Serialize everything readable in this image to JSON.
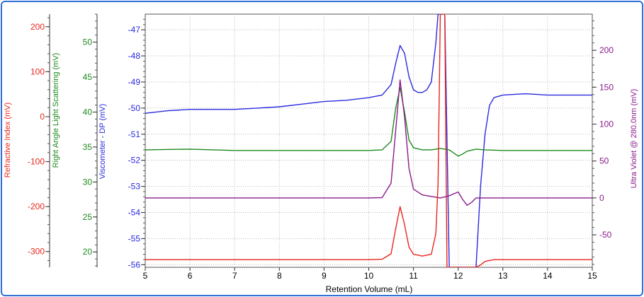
{
  "chart_data": {
    "type": "line",
    "xlabel": "Retention Volume (mL)",
    "xlim": [
      5,
      15
    ],
    "x_ticks": [
      "5",
      "6",
      "7",
      "8",
      "9",
      "10",
      "11",
      "12",
      "13",
      "14",
      "15"
    ],
    "grid": true,
    "axes": {
      "ri": {
        "label": "Refractive Index (mV)",
        "color": "#e8261c",
        "ylim": [
          -335,
          228
        ],
        "ticks": [
          "200",
          "100",
          "0",
          "-100",
          "-200",
          "-300"
        ],
        "tick_values": [
          200,
          100,
          0,
          -100,
          -200,
          -300
        ]
      },
      "rals": {
        "label": "Right Angle Light Scattering (mV)",
        "color": "#1e8a1e",
        "ylim": [
          17.8,
          54
        ],
        "ticks": [
          "50",
          "45",
          "40",
          "35",
          "30",
          "25",
          "20"
        ],
        "tick_values": [
          50,
          45,
          40,
          35,
          30,
          25,
          20
        ]
      },
      "visc": {
        "label": "Viscometer - DP (mV)",
        "color": "#2a2ae0",
        "ylim": [
          -56.1,
          -46.4
        ],
        "ticks": [
          "-47",
          "-48",
          "-49",
          "-50",
          "-51",
          "-52",
          "-53",
          "-54",
          "-55",
          "-56"
        ],
        "tick_values": [
          -47,
          -48,
          -49,
          -50,
          -51,
          -52,
          -53,
          -54,
          -55,
          -56
        ]
      },
      "uv": {
        "label": "Ultra Violet @ 280.0nm (mV)",
        "color": "#8a1a8a",
        "ylim": [
          -94,
          249
        ],
        "ticks": [
          "200",
          "150",
          "100",
          "50",
          "0",
          "-50"
        ],
        "tick_values": [
          200,
          150,
          100,
          50,
          0,
          -50
        ]
      }
    },
    "series": [
      {
        "axis": "visc",
        "color": "#2a2ae0",
        "x": [
          5.0,
          5.5,
          6.0,
          6.5,
          7.0,
          7.5,
          8.0,
          8.5,
          9.0,
          9.5,
          10.0,
          10.3,
          10.5,
          10.6,
          10.7,
          10.8,
          10.9,
          11.0,
          11.1,
          11.2,
          11.3,
          11.4,
          11.5,
          11.55,
          11.6,
          11.7,
          11.8,
          11.9,
          12.0,
          12.1,
          12.2,
          12.3,
          12.4,
          12.5,
          12.6,
          12.7,
          12.8,
          13.0,
          13.5,
          14.0,
          14.5,
          15.0
        ],
        "y": [
          -50.2,
          -50.1,
          -50.05,
          -50.05,
          -50.05,
          -50.0,
          -49.95,
          -49.85,
          -49.75,
          -49.7,
          -49.6,
          -49.5,
          -49.1,
          -48.3,
          -47.6,
          -47.9,
          -48.8,
          -49.3,
          -49.4,
          -49.4,
          -49.3,
          -49.0,
          -47.5,
          -46.4,
          -46.4,
          -46.4,
          -56.1,
          -56.1,
          -56.1,
          -56.1,
          -56.1,
          -56.1,
          -56.1,
          -53.0,
          -51.0,
          -49.9,
          -49.6,
          -49.5,
          -49.45,
          -49.5,
          -49.5,
          -49.5
        ]
      },
      {
        "axis": "rals",
        "color": "#1e8a1e",
        "x": [
          5.0,
          6.0,
          7.0,
          8.0,
          9.0,
          10.0,
          10.3,
          10.5,
          10.6,
          10.7,
          10.8,
          10.9,
          11.0,
          11.2,
          11.4,
          11.6,
          11.8,
          12.0,
          12.1,
          12.2,
          12.4,
          12.6,
          13.0,
          14.0,
          15.0
        ],
        "y": [
          34.6,
          34.7,
          34.5,
          34.5,
          34.5,
          34.5,
          34.6,
          35.8,
          40.5,
          43.5,
          40.0,
          36.0,
          34.9,
          34.6,
          34.6,
          34.8,
          34.6,
          33.7,
          34.0,
          34.4,
          34.7,
          34.6,
          34.5,
          34.5,
          34.5
        ]
      },
      {
        "axis": "uv",
        "color": "#8a1a8a",
        "x": [
          5.0,
          7.0,
          9.0,
          10.0,
          10.3,
          10.5,
          10.6,
          10.7,
          10.8,
          10.9,
          11.0,
          11.2,
          11.4,
          11.6,
          11.8,
          12.0,
          12.1,
          12.2,
          12.3,
          12.4,
          12.6,
          13.0,
          14.0,
          15.0
        ],
        "y": [
          0,
          0,
          0,
          0,
          0.5,
          20,
          90,
          160,
          110,
          40,
          12,
          4,
          2,
          0,
          3,
          8,
          -2,
          -10,
          -6,
          0,
          0,
          0,
          0,
          0
        ]
      },
      {
        "axis": "ri",
        "color": "#e8261c",
        "x": [
          5.0,
          7.0,
          9.0,
          10.0,
          10.3,
          10.5,
          10.6,
          10.7,
          10.8,
          10.9,
          11.0,
          11.2,
          11.4,
          11.5,
          11.55,
          11.6,
          11.65,
          11.7,
          11.75,
          11.8,
          12.0,
          12.2,
          12.3,
          12.4,
          12.5,
          12.6,
          12.8,
          13.0,
          14.0,
          15.0
        ],
        "y": [
          -318,
          -318,
          -318,
          -318,
          -317,
          -305,
          -250,
          -200,
          -240,
          -290,
          -306,
          -310,
          -306,
          -260,
          -150,
          228,
          228,
          228,
          -335,
          -335,
          -335,
          -335,
          -335,
          -335,
          -330,
          -322,
          -318,
          -318,
          -318,
          -318
        ]
      }
    ]
  }
}
